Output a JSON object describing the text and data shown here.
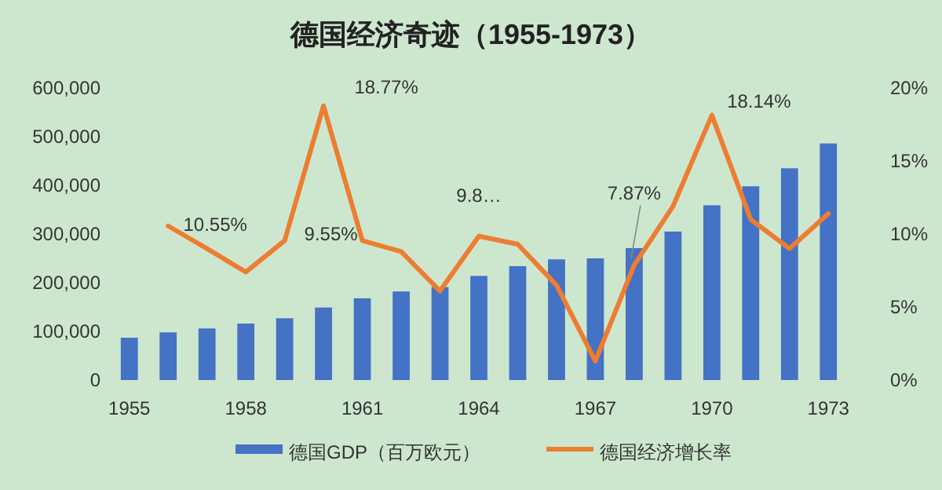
{
  "chart_data": {
    "type": "bar",
    "title": "德国经济奇迹（1955-1973）",
    "categories": [
      "1955",
      null,
      null,
      "1958",
      null,
      null,
      "1961",
      null,
      null,
      "1964",
      null,
      null,
      "1967",
      null,
      null,
      "1970",
      null,
      null,
      "1973"
    ],
    "series": [
      {
        "name": "德国GDP（百万欧元）",
        "color": "#4472c4",
        "values": [
          87000,
          98000,
          106000,
          116000,
          127000,
          149000,
          168000,
          182000,
          191000,
          214000,
          234000,
          248000,
          250000,
          271000,
          305000,
          359000,
          398000,
          435000,
          486000
        ]
      },
      {
        "name": "德国经济增长率",
        "type": "line",
        "axis": "y2",
        "color": "#ed7d31",
        "values": [
          null,
          10.55,
          9.0,
          7.4,
          9.55,
          18.77,
          9.55,
          8.8,
          6.1,
          9.85,
          9.3,
          6.5,
          1.3,
          7.87,
          11.9,
          18.14,
          11.0,
          9.0,
          11.4
        ],
        "value_labels": [
          null,
          "10.55%",
          null,
          null,
          null,
          "18.77%",
          "9.55%",
          null,
          null,
          "9.8…",
          null,
          null,
          null,
          "7.87%",
          null,
          "18.14%",
          null,
          null,
          null
        ]
      }
    ],
    "ylim": [
      0,
      600000
    ],
    "yticks": [
      {
        "value": 0,
        "label": "0"
      },
      {
        "value": 100000,
        "label": "100,000"
      },
      {
        "value": 200000,
        "label": "200,000"
      },
      {
        "value": 300000,
        "label": "300,000"
      },
      {
        "value": 400000,
        "label": "400,000"
      },
      {
        "value": 500000,
        "label": "500,000"
      },
      {
        "value": 600000,
        "label": "600,000"
      }
    ],
    "y2lim": [
      0,
      20
    ],
    "y2ticks": [
      {
        "value": 0,
        "label": "0%"
      },
      {
        "value": 5,
        "label": "5%"
      },
      {
        "value": 10,
        "label": "10%"
      },
      {
        "value": 15,
        "label": "15%"
      },
      {
        "value": 20,
        "label": "20%"
      }
    ],
    "grid": false,
    "legend": "bottom"
  }
}
